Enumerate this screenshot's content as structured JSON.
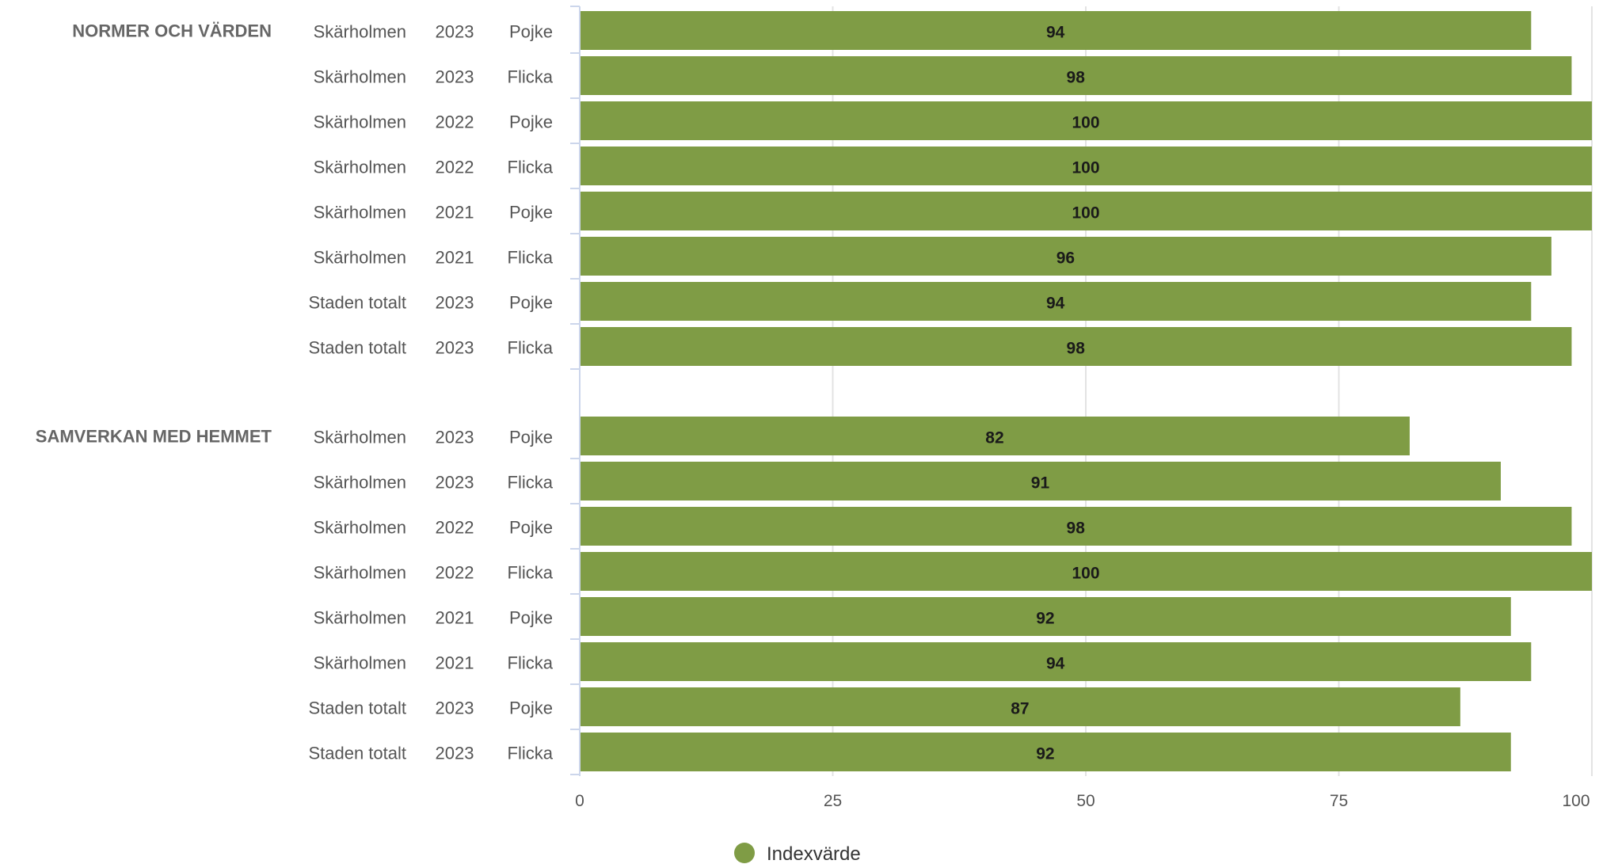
{
  "chart_data": {
    "type": "bar",
    "orientation": "horizontal",
    "xlim": [
      0,
      100
    ],
    "x_ticks": [
      0,
      25,
      50,
      75,
      100
    ],
    "grid": true,
    "legend_position": "bottom-center",
    "bar_color": "#7f9c45",
    "series": [
      {
        "name": "Indexvärde",
        "color": "#7f9c45"
      }
    ],
    "groups": [
      {
        "label": "NORMER OCH VÄRDEN",
        "rows": [
          {
            "area": "Skärholmen",
            "year": "2023",
            "gender": "Pojke",
            "value": 94
          },
          {
            "area": "Skärholmen",
            "year": "2023",
            "gender": "Flicka",
            "value": 98
          },
          {
            "area": "Skärholmen",
            "year": "2022",
            "gender": "Pojke",
            "value": 100
          },
          {
            "area": "Skärholmen",
            "year": "2022",
            "gender": "Flicka",
            "value": 100
          },
          {
            "area": "Skärholmen",
            "year": "2021",
            "gender": "Pojke",
            "value": 100
          },
          {
            "area": "Skärholmen",
            "year": "2021",
            "gender": "Flicka",
            "value": 96
          },
          {
            "area": "Staden totalt",
            "year": "2023",
            "gender": "Pojke",
            "value": 94
          },
          {
            "area": "Staden totalt",
            "year": "2023",
            "gender": "Flicka",
            "value": 98
          }
        ]
      },
      {
        "label": "SAMVERKAN MED HEMMET",
        "rows": [
          {
            "area": "Skärholmen",
            "year": "2023",
            "gender": "Pojke",
            "value": 82
          },
          {
            "area": "Skärholmen",
            "year": "2023",
            "gender": "Flicka",
            "value": 91
          },
          {
            "area": "Skärholmen",
            "year": "2022",
            "gender": "Pojke",
            "value": 98
          },
          {
            "area": "Skärholmen",
            "year": "2022",
            "gender": "Flicka",
            "value": 100
          },
          {
            "area": "Skärholmen",
            "year": "2021",
            "gender": "Pojke",
            "value": 92
          },
          {
            "area": "Skärholmen",
            "year": "2021",
            "gender": "Flicka",
            "value": 94
          },
          {
            "area": "Staden totalt",
            "year": "2023",
            "gender": "Pojke",
            "value": 87
          },
          {
            "area": "Staden totalt",
            "year": "2023",
            "gender": "Flicka",
            "value": 92
          }
        ]
      }
    ]
  }
}
